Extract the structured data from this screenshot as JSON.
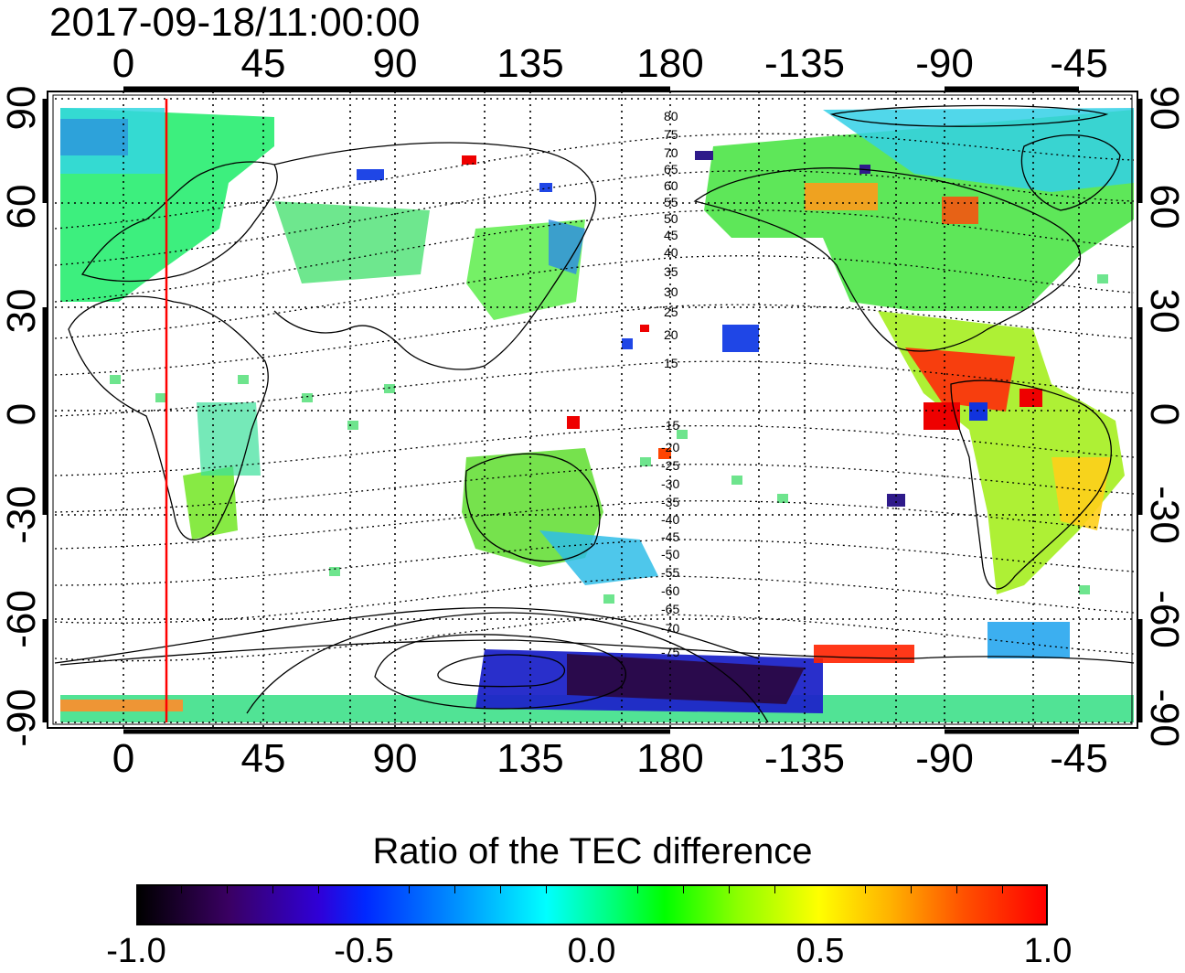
{
  "title": "2017-09-18/11:00:00",
  "axes": {
    "lon_ticks": [
      "0",
      "45",
      "90",
      "135",
      "180",
      "-135",
      "-90",
      "-45"
    ],
    "lat_ticks": [
      "90",
      "60",
      "30",
      "0",
      "-30",
      "-60",
      "-90"
    ]
  },
  "contour_labels": {
    "north": [
      "80",
      "75",
      "70",
      "65",
      "60",
      "55",
      "50",
      "45",
      "40",
      "35",
      "30",
      "25",
      "20",
      "15"
    ],
    "south": [
      "-15",
      "-20",
      "-25",
      "-30",
      "-35",
      "-40",
      "-45",
      "-50",
      "-55",
      "-60",
      "-65",
      "-70",
      "-75"
    ]
  },
  "colorbar": {
    "title": "Ratio of the TEC difference",
    "ticks": [
      "-1.0",
      "-0.5",
      "0.0",
      "0.5",
      "1.0"
    ],
    "range": [
      -1.0,
      1.0
    ]
  },
  "colors": {
    "sun_line": "#ff0000",
    "frame": "#000000"
  }
}
